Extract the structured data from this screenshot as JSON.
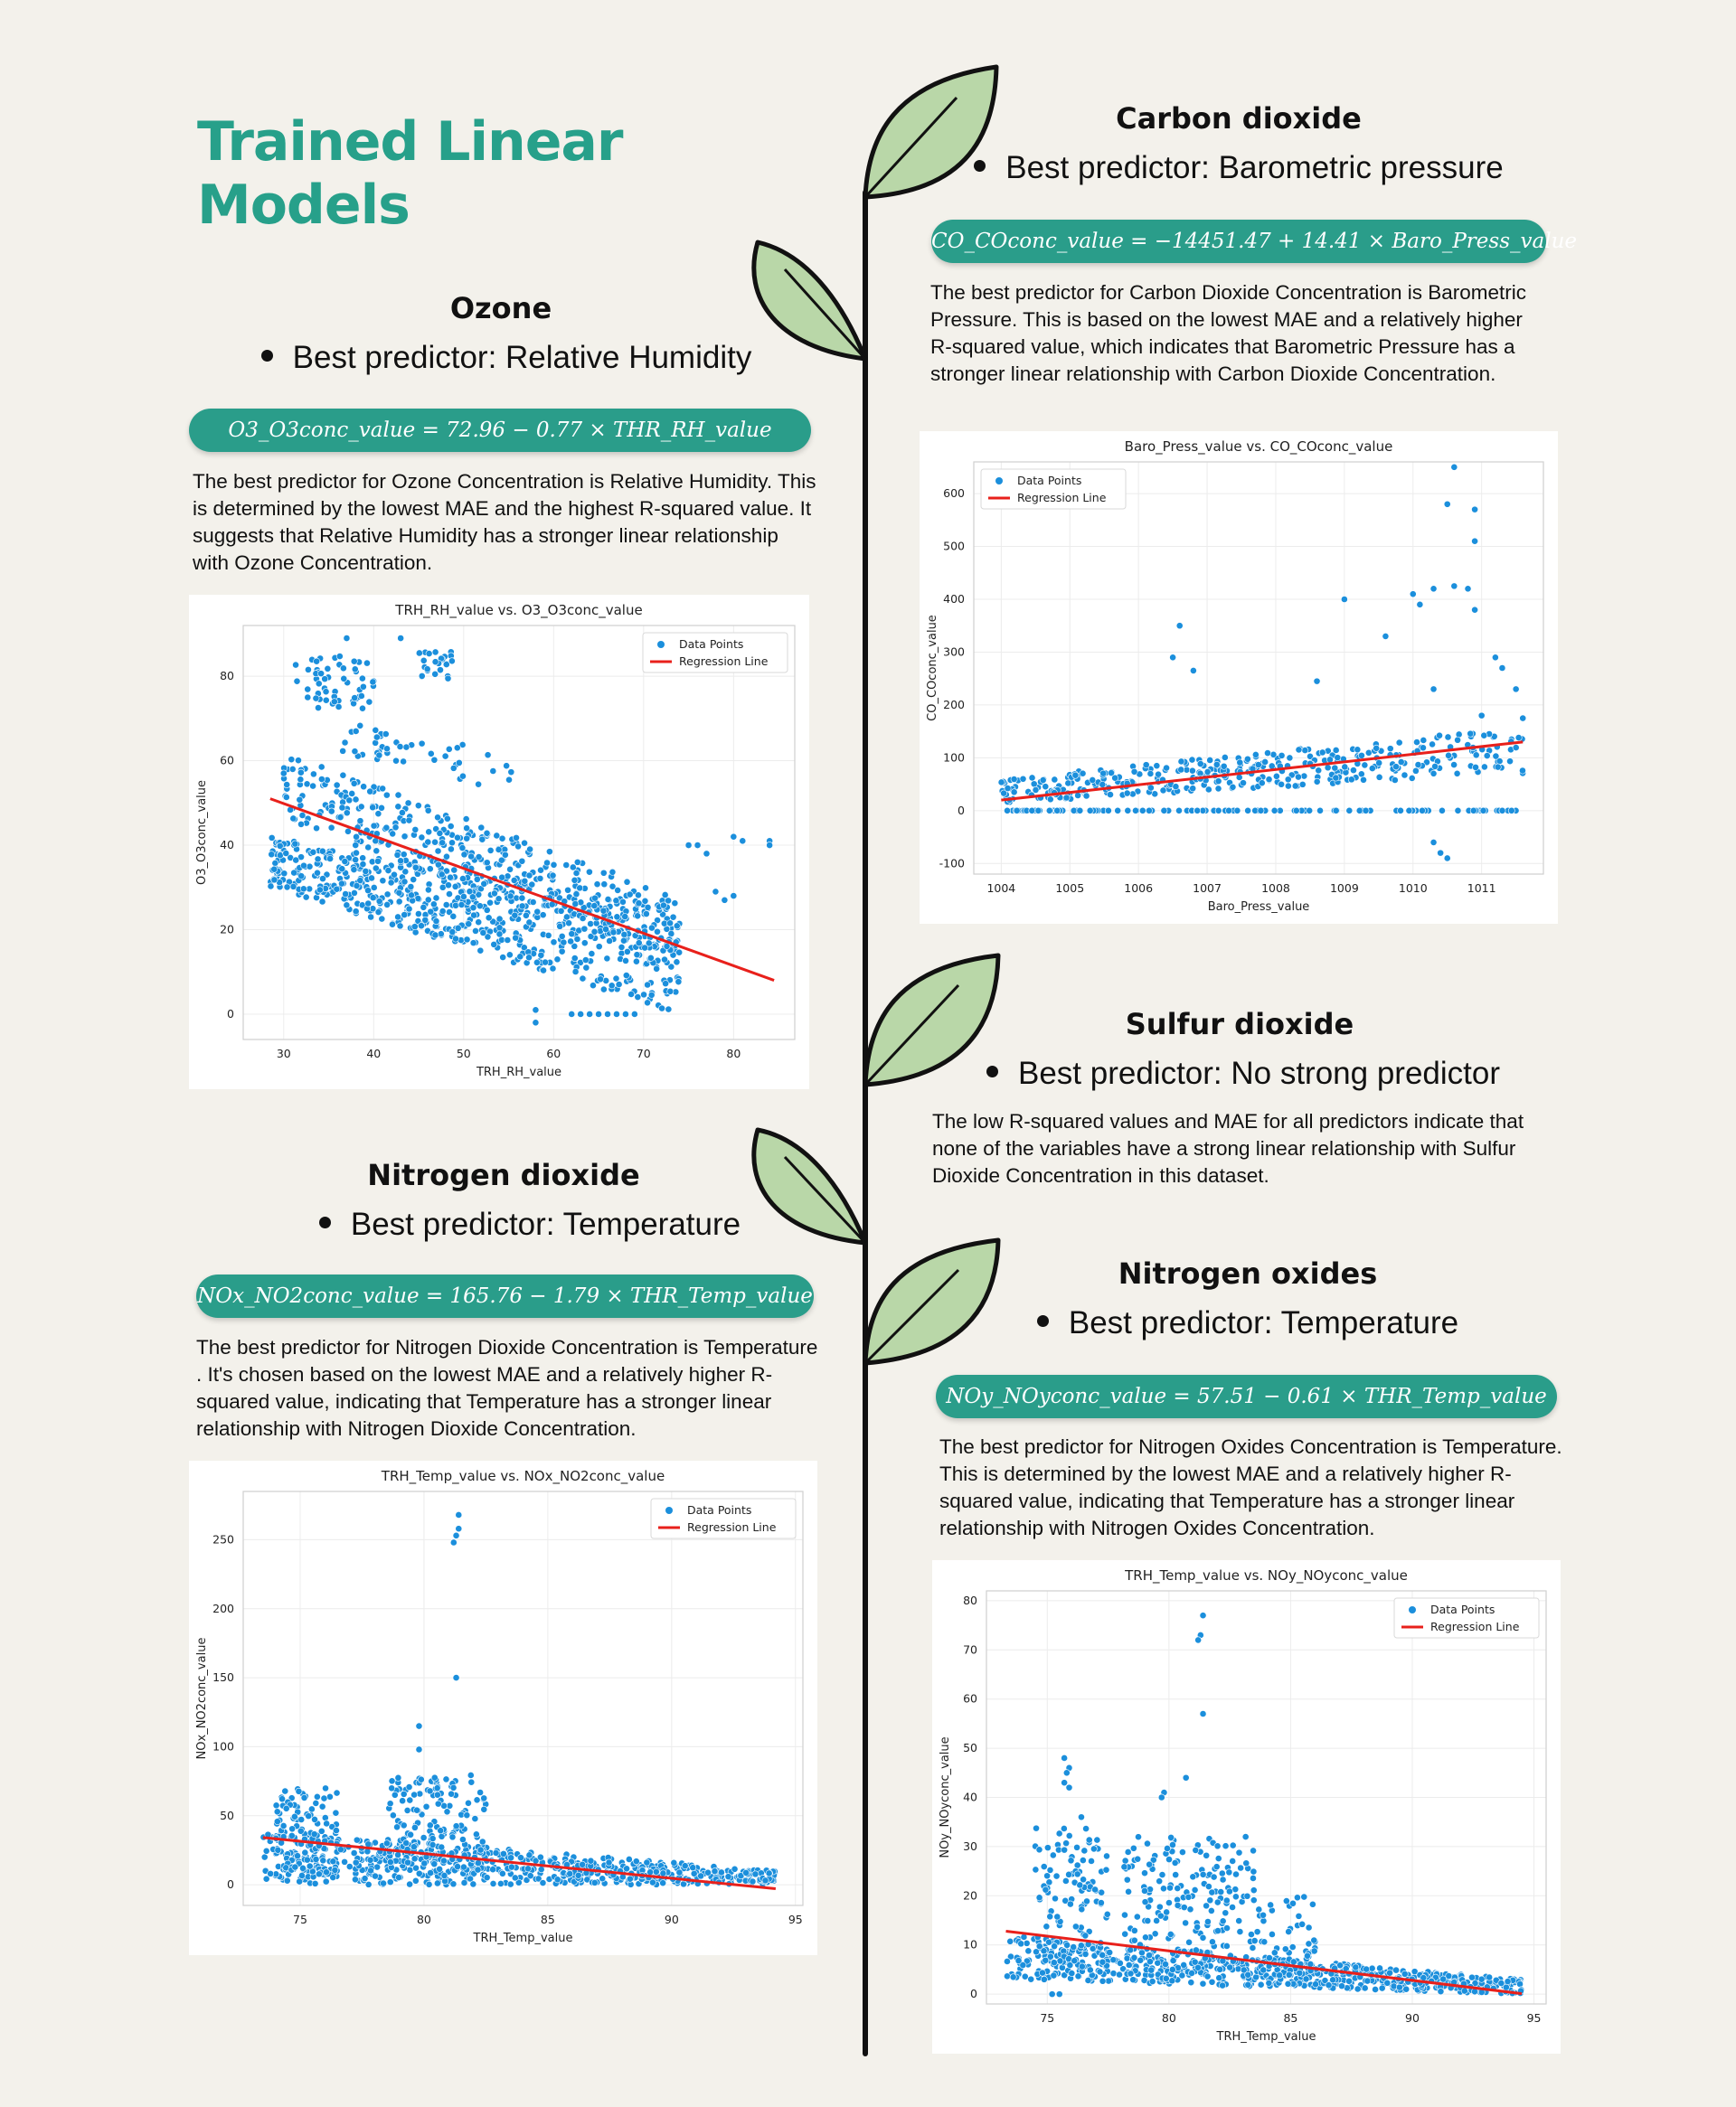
{
  "page": {
    "title": "Trained Linear Models"
  },
  "colors": {
    "title": "#27a08a",
    "pill": "#2a9d8a",
    "leaf": "#b9d7a8",
    "points": "#1b8fdc",
    "regression": "#e8201b"
  },
  "sections": {
    "co2": {
      "title": "Carbon dioxide",
      "bullet": "Best predictor: Barometric pressure",
      "formula": "CO_COconc_value = −14451.47 + 14.41 × Baro_Press_value",
      "description": "The best predictor for Carbon Dioxide Concentration is Barometric Pressure. This is based on the lowest MAE and a relatively higher R-squared value, which indicates that Barometric Pressure has a stronger linear relationship with Carbon Dioxide Concentration."
    },
    "ozone": {
      "title": "Ozone",
      "bullet": "Best predictor: Relative Humidity",
      "formula": "O3_O3conc_value = 72.96 − 0.77 × THR_RH_value",
      "description": "The best predictor for Ozone Concentration is Relative Humidity. This is determined by the lowest MAE and the highest R-squared value. It suggests that Relative Humidity has a stronger linear relationship with Ozone Concentration."
    },
    "so2": {
      "title": "Sulfur dioxide",
      "bullet": "Best predictor: No strong predictor",
      "description": "The low R-squared values and MAE for all predictors indicate that none of the variables have a strong linear relationship with Sulfur Dioxide Concentration in this dataset."
    },
    "no2": {
      "title": "Nitrogen dioxide",
      "bullet": "Best predictor: Temperature",
      "formula": "NOx_NO2conc_value = 165.76 − 1.79 × THR_Temp_value",
      "description": "The best predictor for Nitrogen Dioxide Concentration is Temperature . It's chosen based on the lowest MAE and a relatively higher R-squared value, indicating that Temperature has a stronger linear relationship with Nitrogen Dioxide Concentration."
    },
    "noy": {
      "title": "Nitrogen oxides",
      "bullet": "Best predictor: Temperature",
      "formula": "NOy_NOyconc_value = 57.51 − 0.61 × THR_Temp_value",
      "description": "The best predictor for Nitrogen Oxides Concentration is Temperature. This is determined by the lowest MAE and a relatively higher R-squared value, indicating that Temperature has a stronger linear relationship with Nitrogen Oxides Concentration."
    }
  },
  "chart_data": [
    {
      "id": "co2",
      "type": "scatter",
      "title": "Baro_Press_value vs. CO_COconc_value",
      "xlabel": "Baro_Press_value",
      "ylabel": "CO_COconc_value",
      "xlim": [
        1003.6,
        1011.9
      ],
      "ylim": [
        -120,
        660
      ],
      "xticks": [
        1004,
        1005,
        1006,
        1007,
        1008,
        1009,
        1010,
        1011
      ],
      "yticks": [
        -100,
        0,
        100,
        200,
        300,
        400,
        500,
        600
      ],
      "legend": {
        "position": "top-left",
        "entries": [
          "Data Points",
          "Regression Line"
        ]
      },
      "grid": true,
      "series": [
        {
          "name": "Data Points",
          "kind": "scatter",
          "clusters": [
            {
              "x": [
                1004.0,
                1011.6
              ],
              "y_start": [
                15,
                60
              ],
              "y_end": [
                70,
                160
              ],
              "count": 380
            },
            {
              "x": [
                1004.0,
                1011.6
              ],
              "y": [
                0,
                0
              ],
              "count": 110
            }
          ],
          "points": [
            [
              1010.6,
              650
            ],
            [
              1010.5,
              580
            ],
            [
              1010.9,
              570
            ],
            [
              1010.9,
              510
            ],
            [
              1010.8,
              420
            ],
            [
              1010.6,
              425
            ],
            [
              1010.3,
              420
            ],
            [
              1010.0,
              410
            ],
            [
              1010.1,
              390
            ],
            [
              1009.0,
              400
            ],
            [
              1006.6,
              350
            ],
            [
              1006.5,
              290
            ],
            [
              1006.8,
              265
            ],
            [
              1008.6,
              245
            ],
            [
              1009.6,
              330
            ],
            [
              1011.2,
              290
            ],
            [
              1011.3,
              270
            ],
            [
              1010.3,
              -60
            ],
            [
              1010.4,
              -80
            ],
            [
              1010.5,
              -90
            ],
            [
              1010.3,
              230
            ],
            [
              1011.5,
              230
            ],
            [
              1011.6,
              175
            ],
            [
              1010.9,
              380
            ],
            [
              1011.0,
              180
            ]
          ]
        },
        {
          "name": "Regression Line",
          "kind": "line",
          "points": [
            [
              1004.0,
              20
            ],
            [
              1011.6,
              130
            ]
          ]
        }
      ]
    },
    {
      "id": "ozone",
      "type": "scatter",
      "title": "TRH_RH_value vs. O3_O3conc_value",
      "xlabel": "TRH_RH_value",
      "ylabel": "O3_O3conc_value",
      "xlim": [
        25.5,
        86.8
      ],
      "ylim": [
        -6,
        92
      ],
      "xticks": [
        30,
        40,
        50,
        60,
        70,
        80
      ],
      "yticks": [
        0,
        20,
        40,
        60,
        80
      ],
      "legend": {
        "position": "top-right",
        "entries": [
          "Data Points",
          "Regression Line"
        ]
      },
      "grid": true,
      "series": [
        {
          "name": "Data Points",
          "kind": "scatter",
          "clusters": [
            {
              "x": [
                28.5,
                74
              ],
              "y_start": [
                30,
                42
              ],
              "y_end": [
                0,
                25
              ],
              "count": 650
            },
            {
              "x": [
                30,
                74
              ],
              "y_start": [
                46,
                62
              ],
              "y_end": [
                12,
                28
              ],
              "count": 360
            },
            {
              "x": [
                31,
                40
              ],
              "y": [
                72,
                85
              ],
              "count": 55
            },
            {
              "x": [
                45,
                49
              ],
              "y": [
                78,
                86
              ],
              "count": 24
            },
            {
              "x": [
                36,
                56
              ],
              "y_start": [
                62,
                70
              ],
              "y_end": [
                52,
                62
              ],
              "count": 45
            }
          ],
          "points": [
            [
              37,
              89
            ],
            [
              43,
              89
            ],
            [
              58,
              -2
            ],
            [
              58,
              1
            ],
            [
              62,
              0
            ],
            [
              63,
              0
            ],
            [
              64,
              0
            ],
            [
              65,
              0
            ],
            [
              66,
              0
            ],
            [
              67,
              0
            ],
            [
              68,
              0
            ],
            [
              69,
              0
            ],
            [
              75,
              40
            ],
            [
              76,
              40
            ],
            [
              77,
              38
            ],
            [
              78,
              29
            ],
            [
              79,
              27
            ],
            [
              80,
              28
            ],
            [
              80,
              42
            ],
            [
              81,
              41
            ],
            [
              84,
              41
            ],
            [
              84,
              40
            ],
            [
              30,
              57
            ],
            [
              31,
              58
            ]
          ]
        },
        {
          "name": "Regression Line",
          "kind": "line",
          "points": [
            [
              28.5,
              51.0
            ],
            [
              84.5,
              8.0
            ]
          ]
        }
      ]
    },
    {
      "id": "no2",
      "type": "scatter",
      "title": "TRH_Temp_value vs. NOx_NO2conc_value",
      "xlabel": "TRH_Temp_value",
      "ylabel": "NOx_NO2conc_value",
      "xlim": [
        72.7,
        95.3
      ],
      "ylim": [
        -15,
        285
      ],
      "xticks": [
        75,
        80,
        85,
        90,
        95
      ],
      "yticks": [
        0,
        50,
        100,
        150,
        200,
        250
      ],
      "legend": {
        "position": "top-right",
        "entries": [
          "Data Points",
          "Regression Line"
        ]
      },
      "grid": true,
      "series": [
        {
          "name": "Data Points",
          "kind": "scatter",
          "clusters": [
            {
              "x": [
                73.5,
                94.2
              ],
              "y_start": [
                0,
                40
              ],
              "y_end": [
                0,
                10
              ],
              "count": 620
            },
            {
              "x": [
                74,
                76.5
              ],
              "y": [
                5,
                70
              ],
              "count": 110
            },
            {
              "x": [
                78.5,
                82.5
              ],
              "y": [
                10,
                80
              ],
              "count": 170
            }
          ],
          "points": [
            [
              81.4,
              268
            ],
            [
              81.4,
              258
            ],
            [
              81.3,
              253
            ],
            [
              81.2,
              248
            ],
            [
              81.3,
              150
            ],
            [
              79.8,
              115
            ],
            [
              79.8,
              98
            ],
            [
              73.6,
              10
            ],
            [
              73.8,
              8
            ]
          ]
        },
        {
          "name": "Regression Line",
          "kind": "line",
          "points": [
            [
              73.5,
              34.2
            ],
            [
              94.2,
              -2.9
            ]
          ]
        }
      ]
    },
    {
      "id": "noy",
      "type": "scatter",
      "title": "TRH_Temp_value vs. NOy_NOyconc_value",
      "xlabel": "TRH_Temp_value",
      "ylabel": "NOy_NOyconc_value",
      "xlim": [
        72.5,
        95.5
      ],
      "ylim": [
        -2,
        82
      ],
      "xticks": [
        75,
        80,
        85,
        90,
        95
      ],
      "yticks": [
        0,
        10,
        20,
        30,
        40,
        50,
        60,
        70,
        80
      ],
      "legend": {
        "position": "top-right",
        "entries": [
          "Data Points",
          "Regression Line"
        ]
      },
      "grid": true,
      "series": [
        {
          "name": "Data Points",
          "kind": "scatter",
          "clusters": [
            {
              "x": [
                73.3,
                94.5
              ],
              "y_start": [
                3,
                12
              ],
              "y_end": [
                0,
                3
              ],
              "count": 620
            },
            {
              "x": [
                74.5,
                77.5
              ],
              "y": [
                2,
                34
              ],
              "count": 120
            },
            {
              "x": [
                78,
                83.5
              ],
              "y": [
                3,
                32
              ],
              "count": 200
            },
            {
              "x": [
                83.5,
                86
              ],
              "y": [
                3,
                20
              ],
              "count": 60
            }
          ],
          "points": [
            [
              81.4,
              77
            ],
            [
              81.3,
              73
            ],
            [
              81.2,
              72
            ],
            [
              81.4,
              57
            ],
            [
              80.7,
              44
            ],
            [
              79.8,
              41
            ],
            [
              79.7,
              40
            ],
            [
              75.7,
              48
            ],
            [
              75.9,
              46
            ],
            [
              75.8,
              45
            ],
            [
              75.7,
              43
            ],
            [
              75.9,
              42
            ],
            [
              76.4,
              36
            ],
            [
              75.2,
              0
            ],
            [
              75.5,
              0
            ]
          ]
        },
        {
          "name": "Regression Line",
          "kind": "line",
          "points": [
            [
              73.3,
              12.8
            ],
            [
              94.5,
              0.1
            ]
          ]
        }
      ]
    }
  ]
}
